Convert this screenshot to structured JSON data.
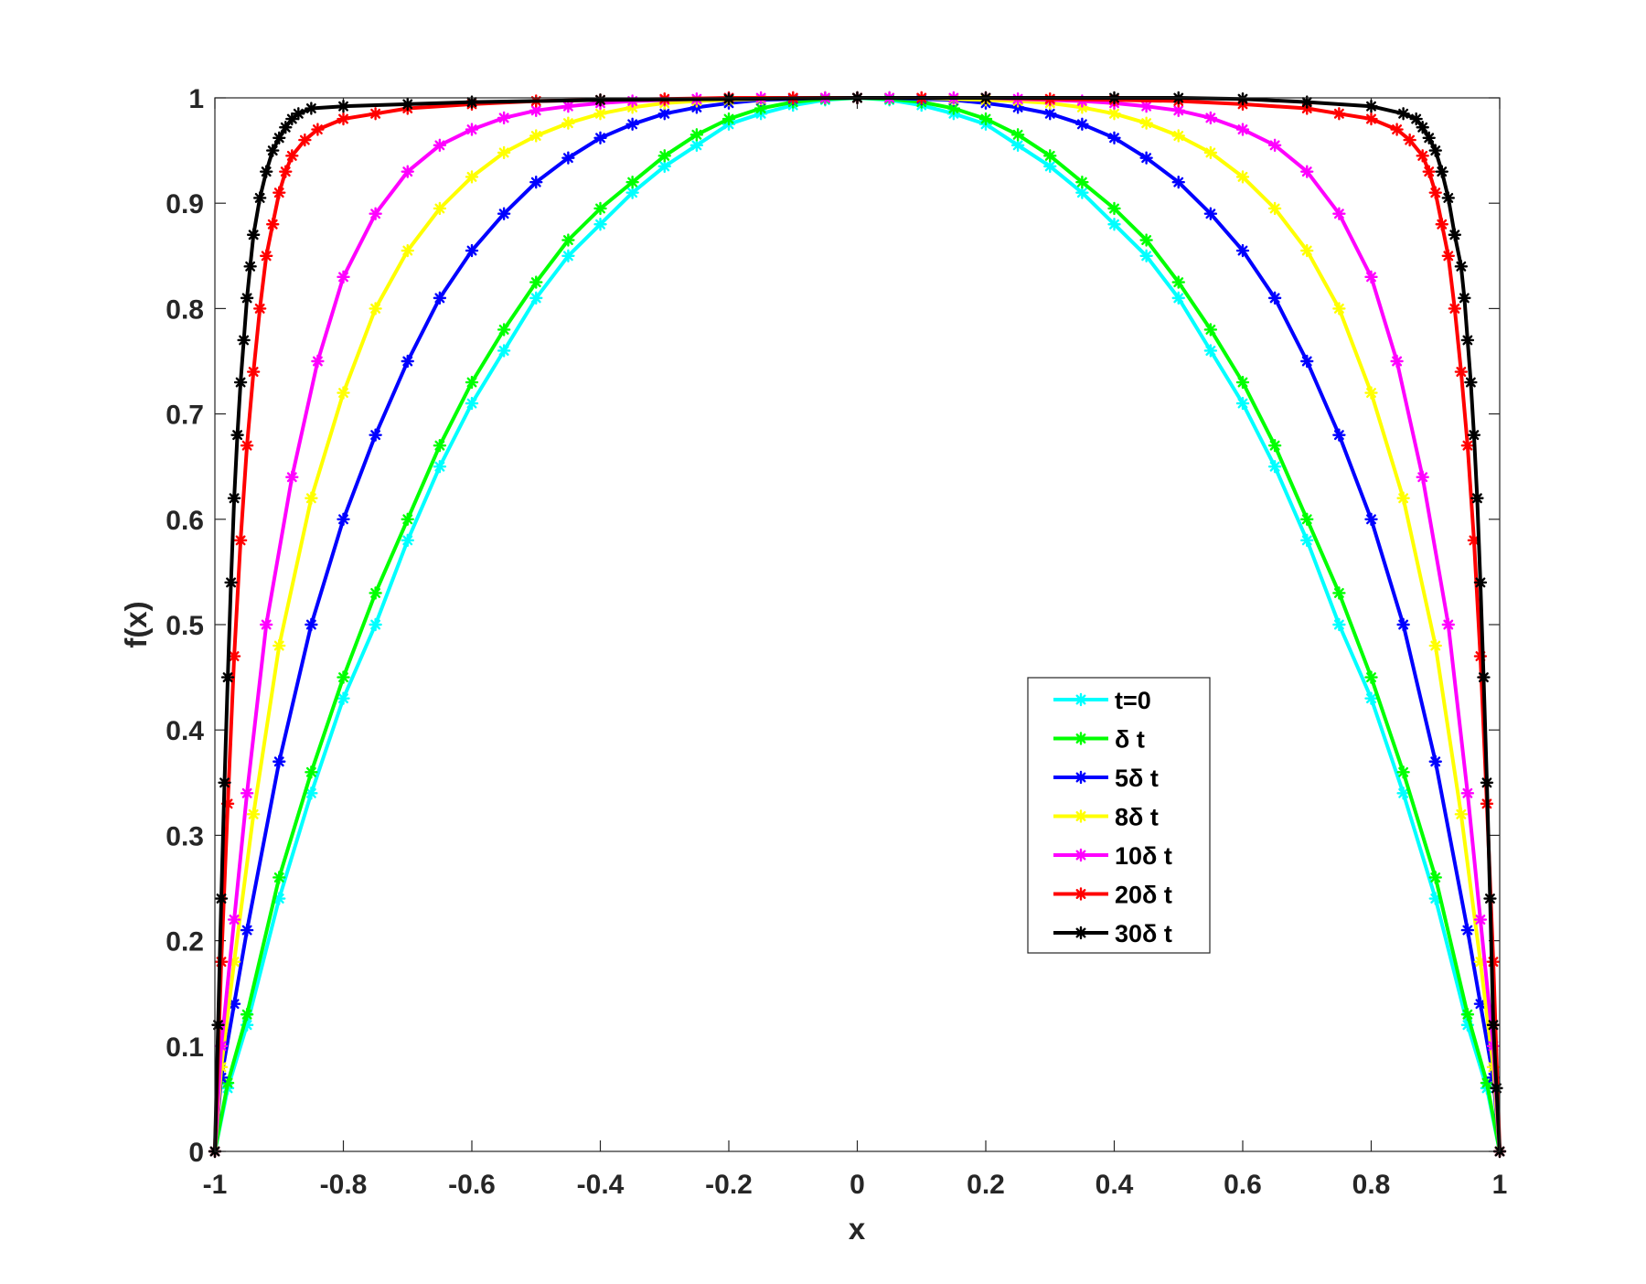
{
  "chart_data": {
    "type": "line",
    "title": "",
    "xlabel": "x",
    "ylabel": "f(x)",
    "xlim": [
      -1,
      1
    ],
    "ylim": [
      0,
      1
    ],
    "xticks": [
      -1,
      -0.8,
      -0.6,
      -0.4,
      -0.2,
      0,
      0.2,
      0.4,
      0.6,
      0.8,
      1
    ],
    "xtick_labels": [
      "-1",
      "-0.8",
      "-0.6",
      "-0.4",
      "-0.2",
      "0",
      "0.2",
      "0.4",
      "0.6",
      "0.8",
      "1"
    ],
    "yticks": [
      0,
      0.1,
      0.2,
      0.3,
      0.4,
      0.5,
      0.6,
      0.7,
      0.8,
      0.9,
      1
    ],
    "ytick_labels": [
      "0",
      "0.1",
      "0.2",
      "0.3",
      "0.4",
      "0.5",
      "0.6",
      "0.7",
      "0.8",
      "0.9",
      "1"
    ],
    "grid": false,
    "legend_position": "center-right",
    "marker": "asterisk",
    "series": [
      {
        "name": "t=0",
        "color": "#00ffff",
        "x": [
          -1,
          -0.98,
          -0.95,
          -0.9,
          -0.85,
          -0.8,
          -0.75,
          -0.7,
          -0.65,
          -0.6,
          -0.55,
          -0.5,
          -0.45,
          -0.4,
          -0.35,
          -0.3,
          -0.25,
          -0.2,
          -0.15,
          -0.1,
          -0.05,
          0,
          0.05,
          0.1,
          0.15,
          0.2,
          0.25,
          0.3,
          0.35,
          0.4,
          0.45,
          0.5,
          0.55,
          0.6,
          0.65,
          0.7,
          0.75,
          0.8,
          0.85,
          0.9,
          0.95,
          0.98,
          1
        ],
        "y": [
          0,
          0.06,
          0.12,
          0.24,
          0.34,
          0.43,
          0.5,
          0.58,
          0.65,
          0.71,
          0.76,
          0.81,
          0.85,
          0.88,
          0.91,
          0.935,
          0.955,
          0.975,
          0.985,
          0.993,
          0.998,
          1,
          0.998,
          0.993,
          0.985,
          0.975,
          0.955,
          0.935,
          0.91,
          0.88,
          0.85,
          0.81,
          0.76,
          0.71,
          0.65,
          0.58,
          0.5,
          0.43,
          0.34,
          0.24,
          0.12,
          0.06,
          0
        ]
      },
      {
        "name": "δ t",
        "color": "#00ff00",
        "x": [
          -1,
          -0.98,
          -0.95,
          -0.9,
          -0.85,
          -0.8,
          -0.75,
          -0.7,
          -0.65,
          -0.6,
          -0.55,
          -0.5,
          -0.45,
          -0.4,
          -0.35,
          -0.3,
          -0.25,
          -0.2,
          -0.15,
          -0.1,
          -0.05,
          0,
          0.05,
          0.1,
          0.15,
          0.2,
          0.25,
          0.3,
          0.35,
          0.4,
          0.45,
          0.5,
          0.55,
          0.6,
          0.65,
          0.7,
          0.75,
          0.8,
          0.85,
          0.9,
          0.95,
          0.98,
          1
        ],
        "y": [
          0,
          0.065,
          0.13,
          0.26,
          0.36,
          0.45,
          0.53,
          0.6,
          0.67,
          0.73,
          0.78,
          0.825,
          0.865,
          0.895,
          0.92,
          0.945,
          0.965,
          0.98,
          0.99,
          0.996,
          0.999,
          1,
          0.999,
          0.996,
          0.99,
          0.98,
          0.965,
          0.945,
          0.92,
          0.895,
          0.865,
          0.825,
          0.78,
          0.73,
          0.67,
          0.6,
          0.53,
          0.45,
          0.36,
          0.26,
          0.13,
          0.065,
          0
        ]
      },
      {
        "name": "5δ t",
        "color": "#0000ff",
        "x": [
          -1,
          -0.99,
          -0.97,
          -0.95,
          -0.9,
          -0.85,
          -0.8,
          -0.75,
          -0.7,
          -0.65,
          -0.6,
          -0.55,
          -0.5,
          -0.45,
          -0.4,
          -0.35,
          -0.3,
          -0.25,
          -0.2,
          -0.15,
          -0.1,
          -0.05,
          0,
          0.05,
          0.1,
          0.15,
          0.2,
          0.25,
          0.3,
          0.35,
          0.4,
          0.45,
          0.5,
          0.55,
          0.6,
          0.65,
          0.7,
          0.75,
          0.8,
          0.85,
          0.9,
          0.95,
          0.97,
          0.99,
          1
        ],
        "y": [
          0,
          0.07,
          0.14,
          0.21,
          0.37,
          0.5,
          0.6,
          0.68,
          0.75,
          0.81,
          0.855,
          0.89,
          0.92,
          0.943,
          0.962,
          0.975,
          0.985,
          0.991,
          0.995,
          0.998,
          0.999,
          1,
          1,
          1,
          0.999,
          0.998,
          0.995,
          0.991,
          0.985,
          0.975,
          0.962,
          0.943,
          0.92,
          0.89,
          0.855,
          0.81,
          0.75,
          0.68,
          0.6,
          0.5,
          0.37,
          0.21,
          0.14,
          0.07,
          0
        ]
      },
      {
        "name": "8δ t",
        "color": "#ffff00",
        "x": [
          -1,
          -0.99,
          -0.97,
          -0.94,
          -0.9,
          -0.85,
          -0.8,
          -0.75,
          -0.7,
          -0.65,
          -0.6,
          -0.55,
          -0.5,
          -0.45,
          -0.4,
          -0.35,
          -0.3,
          -0.25,
          -0.2,
          -0.15,
          -0.1,
          -0.05,
          0,
          0.05,
          0.1,
          0.15,
          0.2,
          0.25,
          0.3,
          0.35,
          0.4,
          0.45,
          0.5,
          0.55,
          0.6,
          0.65,
          0.7,
          0.75,
          0.8,
          0.85,
          0.9,
          0.94,
          0.97,
          0.99,
          1
        ],
        "y": [
          0,
          0.08,
          0.18,
          0.32,
          0.48,
          0.62,
          0.72,
          0.8,
          0.855,
          0.895,
          0.925,
          0.948,
          0.964,
          0.976,
          0.985,
          0.991,
          0.995,
          0.997,
          0.998,
          0.999,
          1,
          1,
          1,
          1,
          1,
          0.999,
          0.998,
          0.997,
          0.995,
          0.991,
          0.985,
          0.976,
          0.964,
          0.948,
          0.925,
          0.895,
          0.855,
          0.8,
          0.72,
          0.62,
          0.48,
          0.32,
          0.18,
          0.08,
          0
        ]
      },
      {
        "name": "10δ t",
        "color": "#ff00ff",
        "x": [
          -1,
          -0.99,
          -0.97,
          -0.95,
          -0.92,
          -0.88,
          -0.84,
          -0.8,
          -0.75,
          -0.7,
          -0.65,
          -0.6,
          -0.55,
          -0.5,
          -0.45,
          -0.4,
          -0.35,
          -0.3,
          -0.25,
          -0.2,
          -0.15,
          -0.1,
          -0.05,
          0,
          0.05,
          0.1,
          0.15,
          0.2,
          0.25,
          0.3,
          0.35,
          0.4,
          0.45,
          0.5,
          0.55,
          0.6,
          0.65,
          0.7,
          0.75,
          0.8,
          0.84,
          0.88,
          0.92,
          0.95,
          0.97,
          0.99,
          1
        ],
        "y": [
          0,
          0.1,
          0.22,
          0.34,
          0.5,
          0.64,
          0.75,
          0.83,
          0.89,
          0.93,
          0.955,
          0.97,
          0.981,
          0.988,
          0.992,
          0.995,
          0.997,
          0.998,
          0.999,
          1,
          1,
          1,
          1,
          1,
          1,
          1,
          1,
          1,
          0.999,
          0.998,
          0.997,
          0.995,
          0.992,
          0.988,
          0.981,
          0.97,
          0.955,
          0.93,
          0.89,
          0.83,
          0.75,
          0.64,
          0.5,
          0.34,
          0.22,
          0.1,
          0
        ]
      },
      {
        "name": "20δ t",
        "color": "#ff0000",
        "x": [
          -1,
          -0.99,
          -0.98,
          -0.97,
          -0.96,
          -0.95,
          -0.94,
          -0.93,
          -0.92,
          -0.91,
          -0.9,
          -0.89,
          -0.88,
          -0.86,
          -0.84,
          -0.8,
          -0.75,
          -0.7,
          -0.6,
          -0.5,
          -0.4,
          -0.3,
          -0.2,
          -0.1,
          0,
          0.1,
          0.2,
          0.3,
          0.4,
          0.5,
          0.6,
          0.7,
          0.75,
          0.8,
          0.84,
          0.86,
          0.88,
          0.89,
          0.9,
          0.91,
          0.92,
          0.93,
          0.94,
          0.95,
          0.96,
          0.97,
          0.98,
          0.99,
          1
        ],
        "y": [
          0,
          0.18,
          0.33,
          0.47,
          0.58,
          0.67,
          0.74,
          0.8,
          0.85,
          0.88,
          0.91,
          0.93,
          0.945,
          0.96,
          0.97,
          0.98,
          0.985,
          0.99,
          0.994,
          0.997,
          0.998,
          0.999,
          1,
          1,
          1,
          1,
          1,
          0.999,
          0.998,
          0.997,
          0.994,
          0.99,
          0.985,
          0.98,
          0.97,
          0.96,
          0.945,
          0.93,
          0.91,
          0.88,
          0.85,
          0.8,
          0.74,
          0.67,
          0.58,
          0.47,
          0.33,
          0.18,
          0
        ]
      },
      {
        "name": "30δ t",
        "color": "#000000",
        "x": [
          -1,
          -0.995,
          -0.99,
          -0.985,
          -0.98,
          -0.975,
          -0.97,
          -0.965,
          -0.96,
          -0.955,
          -0.95,
          -0.945,
          -0.94,
          -0.93,
          -0.92,
          -0.91,
          -0.9,
          -0.89,
          -0.88,
          -0.87,
          -0.85,
          -0.8,
          -0.7,
          -0.6,
          -0.4,
          -0.2,
          0,
          0.2,
          0.4,
          0.5,
          0.6,
          0.7,
          0.8,
          0.85,
          0.87,
          0.88,
          0.89,
          0.9,
          0.91,
          0.92,
          0.93,
          0.94,
          0.945,
          0.95,
          0.955,
          0.96,
          0.965,
          0.97,
          0.975,
          0.98,
          0.985,
          0.99,
          0.995,
          1
        ],
        "y": [
          0,
          0.12,
          0.24,
          0.35,
          0.45,
          0.54,
          0.62,
          0.68,
          0.73,
          0.77,
          0.81,
          0.84,
          0.87,
          0.905,
          0.93,
          0.95,
          0.962,
          0.972,
          0.98,
          0.985,
          0.99,
          0.992,
          0.994,
          0.996,
          0.998,
          0.999,
          1,
          1,
          1,
          1,
          0.999,
          0.996,
          0.992,
          0.985,
          0.98,
          0.972,
          0.962,
          0.95,
          0.93,
          0.905,
          0.87,
          0.84,
          0.81,
          0.77,
          0.73,
          0.68,
          0.62,
          0.54,
          0.45,
          0.35,
          0.24,
          0.12,
          0.06,
          0
        ]
      }
    ]
  }
}
